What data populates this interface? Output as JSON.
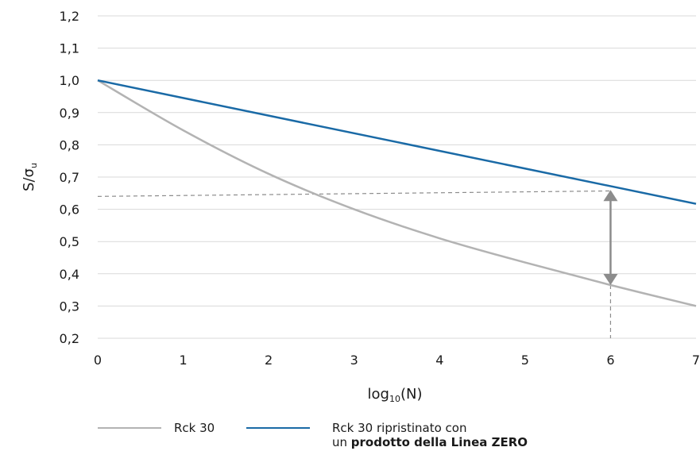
{
  "chart_data": {
    "type": "line",
    "xlabel_main": "log",
    "xlabel_sub": "10",
    "xlabel_tail": "(N)",
    "ylabel_main": "S/σ",
    "ylabel_sub": "u",
    "xlim": [
      0,
      7
    ],
    "ylim": [
      0.2,
      1.2
    ],
    "x_ticks": [
      "0",
      "1",
      "2",
      "3",
      "4",
      "5",
      "6",
      "7"
    ],
    "y_ticks": [
      "0,2",
      "0,3",
      "0,4",
      "0,5",
      "0,6",
      "0,7",
      "0,8",
      "0,9",
      "1,0",
      "1,1",
      "1,2"
    ],
    "grid": true,
    "series": [
      {
        "name": "Rck 30",
        "color": "#b3b3b3",
        "x": [
          0,
          1,
          2,
          3,
          4,
          5,
          6,
          7
        ],
        "values": [
          1.0,
          0.845,
          0.71,
          0.6,
          0.51,
          0.435,
          0.365,
          0.3
        ]
      },
      {
        "name": "Rck 30 ripristinato con un prodotto della Linea ZERO",
        "color": "#1a6aa6",
        "x": [
          0,
          7
        ],
        "values": [
          1.0,
          0.617
        ]
      }
    ],
    "annotations": {
      "dashed_reference": {
        "x": [
          0,
          6
        ],
        "y": [
          0.64,
          0.657
        ]
      },
      "dashed_drop": {
        "x": 6,
        "y_from": 0.365,
        "y_to": 0.2
      },
      "double_arrow": {
        "x": 6,
        "y_from": 0.365,
        "y_to": 0.66
      }
    }
  },
  "legend": {
    "item1_label": "Rck 30",
    "item2_line1": "Rck 30 ripristinato con",
    "item2_line2_prefix": "un ",
    "item2_line2_bold": "prodotto della Linea ZERO"
  },
  "colors": {
    "grid": "#d9d9d9",
    "dashed": "#8c8c8c",
    "arrow": "#8c8c8c"
  }
}
